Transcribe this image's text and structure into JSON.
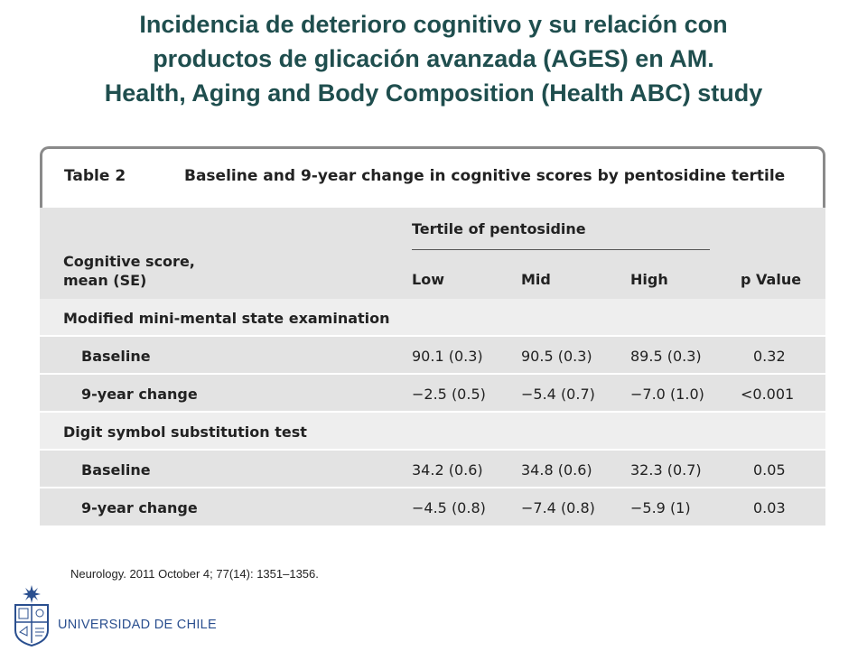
{
  "title": {
    "line1": "Incidencia de deterioro cognitivo y su relación con",
    "line2": "productos de glicación avanzada (AGES) en AM.",
    "line3": "Health, Aging and Body Composition (Health ABC) study"
  },
  "table": {
    "label": "Table 2",
    "caption": "Baseline and 9-year change in cognitive scores by pentosidine tertile",
    "header": {
      "row_header_line1": "Cognitive score,",
      "row_header_line2": "mean (SE)",
      "group": "Tertile of pentosidine",
      "columns": [
        "Low",
        "Mid",
        "High",
        "p Value"
      ]
    },
    "sections": [
      {
        "name": "Modified mini-mental state examination",
        "rows": [
          {
            "label": "Baseline",
            "low": "90.1 (0.3)",
            "mid": "90.5 (0.3)",
            "high": "89.5 (0.3)",
            "p": "0.32"
          },
          {
            "label": "9-year change",
            "low": "−2.5 (0.5)",
            "mid": "−5.4 (0.7)",
            "high": "−7.0 (1.0)",
            "p": "<0.001"
          }
        ]
      },
      {
        "name": "Digit symbol substitution test",
        "rows": [
          {
            "label": "Baseline",
            "low": "34.2 (0.6)",
            "mid": "34.8 (0.6)",
            "high": "32.3 (0.7)",
            "p": "0.05"
          },
          {
            "label": "9-year change",
            "low": "−4.5 (0.8)",
            "mid": "−7.4 (0.8)",
            "high": "−5.9 (1)",
            "p": "0.03"
          }
        ]
      }
    ]
  },
  "citation": "Neurology. 2011 October 4; 77(14): 1351–1356.",
  "footer": {
    "org_name": "UNIVERSIDAD DE CHILE",
    "logo_icon": "university-crest-icon"
  },
  "colors": {
    "title": "#1f4e4e",
    "org_blue": "#2a4f8f",
    "band_gray": "#e3e3e3",
    "band_light": "#eeeeee"
  }
}
